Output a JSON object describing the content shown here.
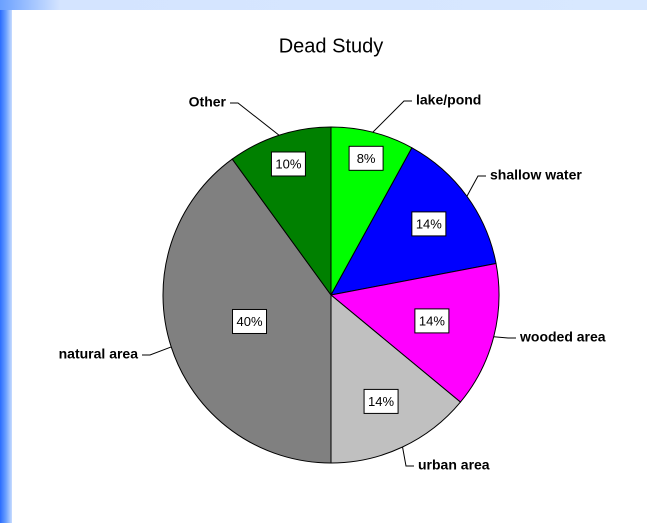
{
  "chart_data": {
    "type": "pie",
    "title": "Dead Study",
    "categories": [
      "lake/pond",
      "shallow water",
      "wooded area",
      "urban area",
      "natural area",
      "Other"
    ],
    "values": [
      8,
      14,
      14,
      14,
      40,
      10
    ],
    "value_labels": [
      "8%",
      "14%",
      "14%",
      "14%",
      "40%",
      "10%"
    ],
    "colors": [
      "#00ff00",
      "#0000ff",
      "#ff00ff",
      "#c0c0c0",
      "#808080",
      "#008000"
    ]
  }
}
